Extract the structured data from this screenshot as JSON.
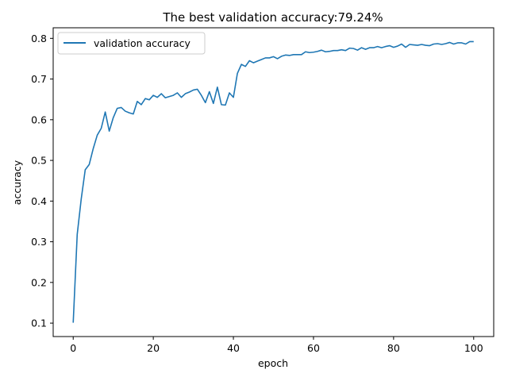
{
  "chart_data": {
    "type": "line",
    "title": "The best validation accuracy:79.24%",
    "xlabel": "epoch",
    "ylabel": "accuracy",
    "xlim": [
      -5,
      105
    ],
    "ylim": [
      0.067,
      0.826
    ],
    "xticks": [
      0,
      20,
      40,
      60,
      80,
      100
    ],
    "xtick_labels": [
      "0",
      "20",
      "40",
      "60",
      "80",
      "100"
    ],
    "yticks": [
      0.1,
      0.2,
      0.3,
      0.4,
      0.5,
      0.6,
      0.7,
      0.8
    ],
    "ytick_labels": [
      "0.1",
      "0.2",
      "0.3",
      "0.4",
      "0.5",
      "0.6",
      "0.7",
      "0.8"
    ],
    "grid": false,
    "legend_position": "upper-left",
    "series": [
      {
        "name": "validation accuracy",
        "color": "#1f77b4",
        "x": [
          0,
          1,
          2,
          3,
          4,
          5,
          6,
          7,
          8,
          9,
          10,
          11,
          12,
          13,
          14,
          15,
          16,
          17,
          18,
          19,
          20,
          21,
          22,
          23,
          24,
          25,
          26,
          27,
          28,
          29,
          30,
          31,
          32,
          33,
          34,
          35,
          36,
          37,
          38,
          39,
          40,
          41,
          42,
          43,
          44,
          45,
          46,
          47,
          48,
          49,
          50,
          51,
          52,
          53,
          54,
          55,
          56,
          57,
          58,
          59,
          60,
          61,
          62,
          63,
          64,
          65,
          66,
          67,
          68,
          69,
          70,
          71,
          72,
          73,
          74,
          75,
          76,
          77,
          78,
          79,
          80,
          81,
          82,
          83,
          84,
          85,
          86,
          87,
          88,
          89,
          90,
          91,
          92,
          93,
          94,
          95,
          96,
          97,
          98,
          99,
          100
        ],
        "values": [
          0.101,
          0.318,
          0.405,
          0.477,
          0.49,
          0.529,
          0.562,
          0.579,
          0.619,
          0.572,
          0.605,
          0.628,
          0.63,
          0.621,
          0.617,
          0.614,
          0.645,
          0.637,
          0.652,
          0.649,
          0.66,
          0.655,
          0.664,
          0.654,
          0.657,
          0.66,
          0.666,
          0.655,
          0.664,
          0.668,
          0.673,
          0.675,
          0.66,
          0.642,
          0.669,
          0.64,
          0.68,
          0.637,
          0.636,
          0.666,
          0.655,
          0.714,
          0.736,
          0.731,
          0.745,
          0.74,
          0.744,
          0.748,
          0.752,
          0.752,
          0.755,
          0.75,
          0.756,
          0.759,
          0.758,
          0.76,
          0.76,
          0.76,
          0.767,
          0.765,
          0.766,
          0.768,
          0.771,
          0.767,
          0.768,
          0.77,
          0.77,
          0.772,
          0.77,
          0.776,
          0.775,
          0.771,
          0.777,
          0.773,
          0.777,
          0.777,
          0.78,
          0.777,
          0.78,
          0.782,
          0.778,
          0.781,
          0.786,
          0.778,
          0.785,
          0.784,
          0.783,
          0.785,
          0.783,
          0.782,
          0.786,
          0.787,
          0.785,
          0.787,
          0.79,
          0.786,
          0.789,
          0.789,
          0.786,
          0.792,
          0.792
        ]
      }
    ]
  }
}
